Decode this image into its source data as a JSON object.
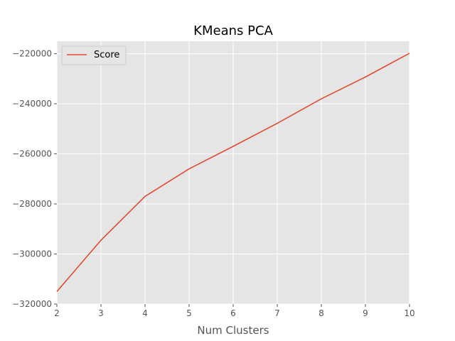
{
  "chart_data": {
    "type": "line",
    "title": "KMeans PCA",
    "xlabel": "Num Clusters",
    "ylabel": "",
    "x": [
      2,
      3,
      4,
      5,
      6,
      7,
      8,
      9,
      10
    ],
    "series": [
      {
        "name": "Score",
        "color": "#E24A33",
        "values": [
          -315000,
          -294500,
          -277000,
          -266000,
          -257000,
          -247800,
          -238000,
          -229300,
          -219800
        ]
      }
    ],
    "xlim": [
      2,
      10
    ],
    "ylim": [
      -320000,
      -215000
    ],
    "xticks": [
      2,
      3,
      4,
      5,
      6,
      7,
      8,
      9,
      10
    ],
    "xtick_labels": [
      "2",
      "3",
      "4",
      "5",
      "6",
      "7",
      "8",
      "9",
      "10"
    ],
    "yticks": [
      -320000,
      -300000,
      -280000,
      -260000,
      -240000,
      -220000
    ],
    "ytick_labels": [
      "−320000",
      "−300000",
      "−280000",
      "−260000",
      "−240000",
      "−220000"
    ],
    "grid": true,
    "legend_position": "top-left",
    "style": {
      "background": "#E5E5E5",
      "grid_color": "#FFFFFF"
    }
  }
}
